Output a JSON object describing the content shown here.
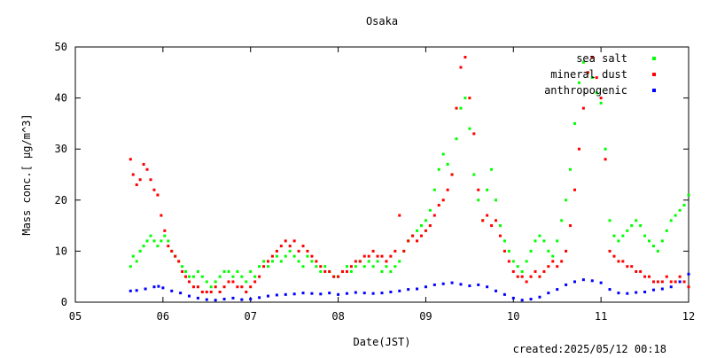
{
  "chart_data": {
    "type": "scatter",
    "title": "Osaka",
    "xlabel": "Date(JST)",
    "ylabel": "Mass conc.[ µg/m^3]",
    "xlim": [
      5,
      12
    ],
    "ylim": [
      0,
      50
    ],
    "x_ticks": [
      "05",
      "06",
      "07",
      "08",
      "09",
      "10",
      "11",
      "12"
    ],
    "y_ticks": [
      0,
      10,
      20,
      30,
      40,
      50
    ],
    "legend_position": "top-right",
    "grid": false,
    "created_label": "created:2025/05/12 00:18",
    "series": [
      {
        "name": "sea salt",
        "color": "#00ff00",
        "points": [
          [
            5.63,
            7
          ],
          [
            5.66,
            9
          ],
          [
            5.7,
            8
          ],
          [
            5.74,
            10
          ],
          [
            5.78,
            11
          ],
          [
            5.82,
            12
          ],
          [
            5.86,
            13
          ],
          [
            5.9,
            12
          ],
          [
            5.94,
            11
          ],
          [
            5.98,
            12
          ],
          [
            6.02,
            13
          ],
          [
            6.06,
            12
          ],
          [
            6.1,
            10
          ],
          [
            6.14,
            9
          ],
          [
            6.18,
            8
          ],
          [
            6.22,
            7
          ],
          [
            6.26,
            6
          ],
          [
            6.3,
            5
          ],
          [
            6.35,
            5
          ],
          [
            6.4,
            6
          ],
          [
            6.45,
            5
          ],
          [
            6.5,
            4
          ],
          [
            6.55,
            3
          ],
          [
            6.6,
            4
          ],
          [
            6.65,
            5
          ],
          [
            6.7,
            6
          ],
          [
            6.75,
            6
          ],
          [
            6.8,
            5
          ],
          [
            6.85,
            6
          ],
          [
            6.9,
            5
          ],
          [
            6.95,
            4
          ],
          [
            7.0,
            6
          ],
          [
            7.05,
            5
          ],
          [
            7.1,
            7
          ],
          [
            7.15,
            8
          ],
          [
            7.2,
            7
          ],
          [
            7.25,
            8
          ],
          [
            7.3,
            9
          ],
          [
            7.35,
            8
          ],
          [
            7.4,
            9
          ],
          [
            7.45,
            10
          ],
          [
            7.5,
            9
          ],
          [
            7.55,
            8
          ],
          [
            7.6,
            7
          ],
          [
            7.65,
            9
          ],
          [
            7.7,
            8
          ],
          [
            7.75,
            7
          ],
          [
            7.8,
            6
          ],
          [
            7.85,
            7
          ],
          [
            7.9,
            6
          ],
          [
            7.95,
            5
          ],
          [
            8.0,
            5
          ],
          [
            8.05,
            6
          ],
          [
            8.1,
            7
          ],
          [
            8.15,
            6
          ],
          [
            8.2,
            7
          ],
          [
            8.25,
            8
          ],
          [
            8.3,
            7
          ],
          [
            8.35,
            8
          ],
          [
            8.4,
            7
          ],
          [
            8.45,
            8
          ],
          [
            8.5,
            6
          ],
          [
            8.55,
            7
          ],
          [
            8.6,
            6
          ],
          [
            8.65,
            7
          ],
          [
            8.7,
            8
          ],
          [
            8.75,
            10
          ],
          [
            8.8,
            12
          ],
          [
            8.85,
            13
          ],
          [
            8.9,
            14
          ],
          [
            8.95,
            15
          ],
          [
            9.0,
            16
          ],
          [
            9.05,
            18
          ],
          [
            9.1,
            22
          ],
          [
            9.15,
            26
          ],
          [
            9.2,
            29
          ],
          [
            9.25,
            27
          ],
          [
            9.3,
            25
          ],
          [
            9.35,
            32
          ],
          [
            9.4,
            38
          ],
          [
            9.45,
            40
          ],
          [
            9.5,
            34
          ],
          [
            9.55,
            25
          ],
          [
            9.6,
            20
          ],
          [
            9.65,
            16
          ],
          [
            9.7,
            22
          ],
          [
            9.75,
            26
          ],
          [
            9.8,
            20
          ],
          [
            9.85,
            15
          ],
          [
            9.9,
            12
          ],
          [
            9.95,
            10
          ],
          [
            10.0,
            8
          ],
          [
            10.05,
            7
          ],
          [
            10.1,
            6
          ],
          [
            10.15,
            8
          ],
          [
            10.2,
            10
          ],
          [
            10.25,
            12
          ],
          [
            10.3,
            13
          ],
          [
            10.35,
            12
          ],
          [
            10.4,
            10
          ],
          [
            10.45,
            9
          ],
          [
            10.5,
            12
          ],
          [
            10.55,
            16
          ],
          [
            10.6,
            20
          ],
          [
            10.65,
            26
          ],
          [
            10.7,
            35
          ],
          [
            10.75,
            43
          ],
          [
            10.8,
            47
          ],
          [
            10.85,
            45
          ],
          [
            10.9,
            44
          ],
          [
            10.95,
            41
          ],
          [
            11.0,
            39
          ],
          [
            11.05,
            30
          ],
          [
            11.1,
            16
          ],
          [
            11.15,
            13
          ],
          [
            11.2,
            12
          ],
          [
            11.25,
            13
          ],
          [
            11.3,
            14
          ],
          [
            11.35,
            15
          ],
          [
            11.4,
            16
          ],
          [
            11.45,
            15
          ],
          [
            11.5,
            13
          ],
          [
            11.55,
            12
          ],
          [
            11.6,
            11
          ],
          [
            11.65,
            10
          ],
          [
            11.7,
            12
          ],
          [
            11.75,
            14
          ],
          [
            11.8,
            16
          ],
          [
            11.85,
            17
          ],
          [
            11.9,
            18
          ],
          [
            11.95,
            19
          ],
          [
            12.0,
            21
          ]
        ]
      },
      {
        "name": "mineral dust",
        "color": "#ff0000",
        "points": [
          [
            5.63,
            28
          ],
          [
            5.66,
            25
          ],
          [
            5.7,
            23
          ],
          [
            5.74,
            24
          ],
          [
            5.78,
            27
          ],
          [
            5.82,
            26
          ],
          [
            5.86,
            24
          ],
          [
            5.9,
            22
          ],
          [
            5.94,
            21
          ],
          [
            5.98,
            17
          ],
          [
            6.02,
            14
          ],
          [
            6.06,
            11
          ],
          [
            6.1,
            10
          ],
          [
            6.14,
            9
          ],
          [
            6.18,
            8
          ],
          [
            6.22,
            6
          ],
          [
            6.26,
            5
          ],
          [
            6.3,
            4
          ],
          [
            6.35,
            3
          ],
          [
            6.4,
            3
          ],
          [
            6.45,
            2
          ],
          [
            6.5,
            2
          ],
          [
            6.55,
            2
          ],
          [
            6.6,
            3
          ],
          [
            6.65,
            2
          ],
          [
            6.7,
            3
          ],
          [
            6.75,
            4
          ],
          [
            6.8,
            4
          ],
          [
            6.85,
            3
          ],
          [
            6.9,
            3
          ],
          [
            6.95,
            2
          ],
          [
            7.0,
            3
          ],
          [
            7.05,
            4
          ],
          [
            7.1,
            5
          ],
          [
            7.15,
            7
          ],
          [
            7.2,
            8
          ],
          [
            7.25,
            9
          ],
          [
            7.3,
            10
          ],
          [
            7.35,
            11
          ],
          [
            7.4,
            12
          ],
          [
            7.45,
            11
          ],
          [
            7.5,
            12
          ],
          [
            7.55,
            10
          ],
          [
            7.6,
            11
          ],
          [
            7.65,
            10
          ],
          [
            7.7,
            9
          ],
          [
            7.75,
            8
          ],
          [
            7.8,
            7
          ],
          [
            7.85,
            6
          ],
          [
            7.9,
            6
          ],
          [
            7.95,
            5
          ],
          [
            8.0,
            5
          ],
          [
            8.05,
            6
          ],
          [
            8.1,
            6
          ],
          [
            8.15,
            7
          ],
          [
            8.2,
            8
          ],
          [
            8.25,
            8
          ],
          [
            8.3,
            9
          ],
          [
            8.35,
            9
          ],
          [
            8.4,
            10
          ],
          [
            8.45,
            9
          ],
          [
            8.5,
            9
          ],
          [
            8.55,
            8
          ],
          [
            8.6,
            9
          ],
          [
            8.65,
            10
          ],
          [
            8.7,
            17
          ],
          [
            8.75,
            10
          ],
          [
            8.8,
            12
          ],
          [
            8.85,
            13
          ],
          [
            8.9,
            12
          ],
          [
            8.95,
            13
          ],
          [
            9.0,
            14
          ],
          [
            9.05,
            15
          ],
          [
            9.1,
            17
          ],
          [
            9.15,
            19
          ],
          [
            9.2,
            20
          ],
          [
            9.25,
            22
          ],
          [
            9.3,
            25
          ],
          [
            9.35,
            38
          ],
          [
            9.4,
            46
          ],
          [
            9.45,
            48
          ],
          [
            9.5,
            40
          ],
          [
            9.55,
            33
          ],
          [
            9.6,
            22
          ],
          [
            9.65,
            16
          ],
          [
            9.7,
            17
          ],
          [
            9.75,
            15
          ],
          [
            9.8,
            16
          ],
          [
            9.85,
            13
          ],
          [
            9.9,
            10
          ],
          [
            9.95,
            8
          ],
          [
            10.0,
            6
          ],
          [
            10.05,
            5
          ],
          [
            10.1,
            5
          ],
          [
            10.15,
            4
          ],
          [
            10.2,
            5
          ],
          [
            10.25,
            6
          ],
          [
            10.3,
            5
          ],
          [
            10.35,
            6
          ],
          [
            10.4,
            7
          ],
          [
            10.45,
            8
          ],
          [
            10.5,
            7
          ],
          [
            10.55,
            8
          ],
          [
            10.6,
            10
          ],
          [
            10.65,
            15
          ],
          [
            10.7,
            22
          ],
          [
            10.75,
            30
          ],
          [
            10.8,
            38
          ],
          [
            10.85,
            45
          ],
          [
            10.9,
            48
          ],
          [
            10.95,
            44
          ],
          [
            11.0,
            40
          ],
          [
            11.05,
            28
          ],
          [
            11.1,
            10
          ],
          [
            11.15,
            9
          ],
          [
            11.2,
            8
          ],
          [
            11.25,
            8
          ],
          [
            11.3,
            7
          ],
          [
            11.35,
            7
          ],
          [
            11.4,
            6
          ],
          [
            11.45,
            6
          ],
          [
            11.5,
            5
          ],
          [
            11.55,
            5
          ],
          [
            11.6,
            4
          ],
          [
            11.65,
            4
          ],
          [
            11.7,
            4
          ],
          [
            11.75,
            5
          ],
          [
            11.8,
            4
          ],
          [
            11.85,
            4
          ],
          [
            11.9,
            5
          ],
          [
            11.95,
            4
          ],
          [
            12.0,
            3
          ]
        ]
      },
      {
        "name": "anthropogenic",
        "color": "#0000ff",
        "points": [
          [
            5.63,
            2.2
          ],
          [
            5.7,
            2.3
          ],
          [
            5.8,
            2.6
          ],
          [
            5.9,
            3.0
          ],
          [
            5.95,
            3.1
          ],
          [
            6.0,
            2.8
          ],
          [
            6.1,
            2.2
          ],
          [
            6.2,
            1.8
          ],
          [
            6.3,
            1.2
          ],
          [
            6.4,
            0.8
          ],
          [
            6.5,
            0.5
          ],
          [
            6.6,
            0.4
          ],
          [
            6.7,
            0.6
          ],
          [
            6.8,
            0.8
          ],
          [
            6.9,
            0.5
          ],
          [
            7.0,
            0.6
          ],
          [
            7.1,
            0.9
          ],
          [
            7.2,
            1.2
          ],
          [
            7.3,
            1.4
          ],
          [
            7.4,
            1.5
          ],
          [
            7.5,
            1.6
          ],
          [
            7.6,
            1.8
          ],
          [
            7.7,
            1.7
          ],
          [
            7.8,
            1.6
          ],
          [
            7.9,
            1.8
          ],
          [
            8.0,
            1.5
          ],
          [
            8.1,
            1.7
          ],
          [
            8.2,
            1.9
          ],
          [
            8.3,
            1.8
          ],
          [
            8.4,
            1.7
          ],
          [
            8.5,
            1.8
          ],
          [
            8.6,
            2.0
          ],
          [
            8.7,
            2.2
          ],
          [
            8.8,
            2.5
          ],
          [
            8.9,
            2.6
          ],
          [
            9.0,
            3.0
          ],
          [
            9.1,
            3.4
          ],
          [
            9.2,
            3.6
          ],
          [
            9.3,
            3.8
          ],
          [
            9.4,
            3.5
          ],
          [
            9.5,
            3.2
          ],
          [
            9.6,
            3.4
          ],
          [
            9.7,
            3.0
          ],
          [
            9.8,
            2.2
          ],
          [
            9.9,
            1.5
          ],
          [
            10.0,
            0.8
          ],
          [
            10.1,
            0.4
          ],
          [
            10.2,
            0.6
          ],
          [
            10.3,
            1.0
          ],
          [
            10.4,
            1.8
          ],
          [
            10.5,
            2.5
          ],
          [
            10.6,
            3.4
          ],
          [
            10.7,
            4.0
          ],
          [
            10.8,
            4.4
          ],
          [
            10.9,
            4.2
          ],
          [
            11.0,
            3.8
          ],
          [
            11.1,
            2.5
          ],
          [
            11.2,
            1.8
          ],
          [
            11.3,
            1.7
          ],
          [
            11.4,
            1.9
          ],
          [
            11.5,
            2.0
          ],
          [
            11.6,
            2.4
          ],
          [
            11.7,
            2.6
          ],
          [
            11.8,
            3.0
          ],
          [
            11.9,
            4.0
          ],
          [
            12.0,
            5.5
          ]
        ]
      }
    ]
  }
}
